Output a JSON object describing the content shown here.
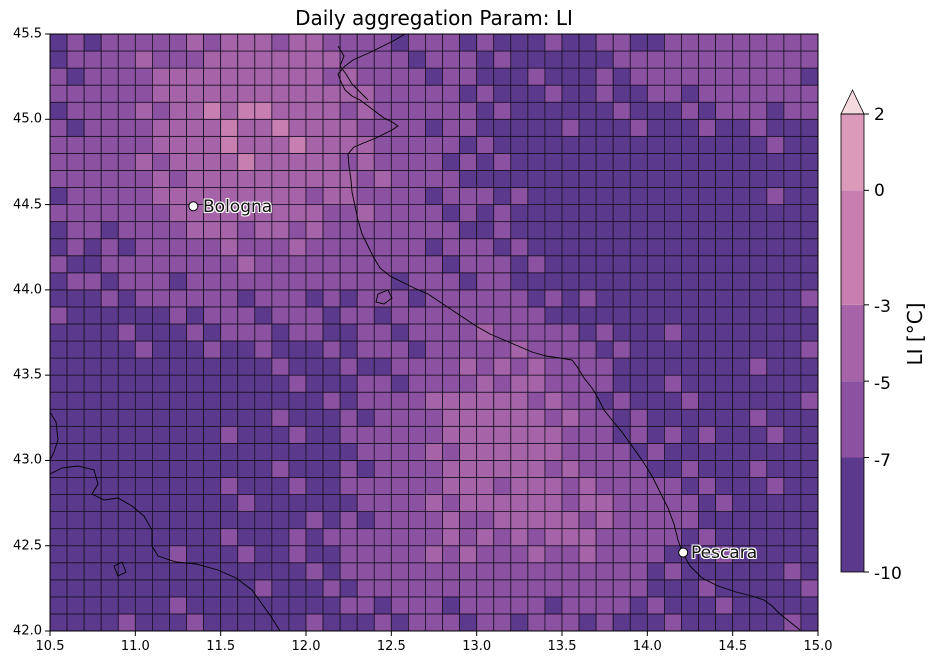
{
  "title": "Daily aggregation Param: LI",
  "x_ticks": [
    "10.5",
    "11.0",
    "11.5",
    "12.0",
    "12.5",
    "13.0",
    "13.5",
    "14.0",
    "14.5",
    "15.0"
  ],
  "y_ticks": [
    "42.0",
    "42.5",
    "43.0",
    "43.5",
    "44.0",
    "44.5",
    "45.0",
    "45.5"
  ],
  "colorbar": {
    "label": "LI [°C]",
    "ticks": [
      "-10",
      "-7",
      "-5",
      "-3",
      "0",
      "2"
    ],
    "levels": [
      -10,
      -7,
      -5,
      -3,
      0,
      2
    ],
    "colors": [
      "#5b3a8e",
      "#8b52a1",
      "#a564a8",
      "#c77faf",
      "#dc9abb"
    ],
    "extend_color": "#f4d9df",
    "extend": "max"
  },
  "cities": [
    {
      "name": "Bologna",
      "lon": 11.34,
      "lat": 44.49
    },
    {
      "name": "Pescara",
      "lon": 14.21,
      "lat": 42.46
    }
  ],
  "chart_data": {
    "type": "heatmap",
    "title": "Daily aggregation Param: LI",
    "xlim": [
      10.5,
      15.0
    ],
    "ylim": [
      42.0,
      45.5
    ],
    "grid_cell_deg": 0.1,
    "value_units": "°C",
    "zones": [
      {
        "region": "north-west (around Bologna)",
        "value": -3
      },
      {
        "region": "south-west",
        "value": -8
      },
      {
        "region": "central band 12.3–13.9 E, 42.3–44.0 N",
        "value": -4
      },
      {
        "region": "north-east Adriatic 13.3–14.8 E, 43.5–45.0 N",
        "value": -6
      },
      {
        "region": "south-east near Pescara",
        "value": -7
      }
    ]
  }
}
